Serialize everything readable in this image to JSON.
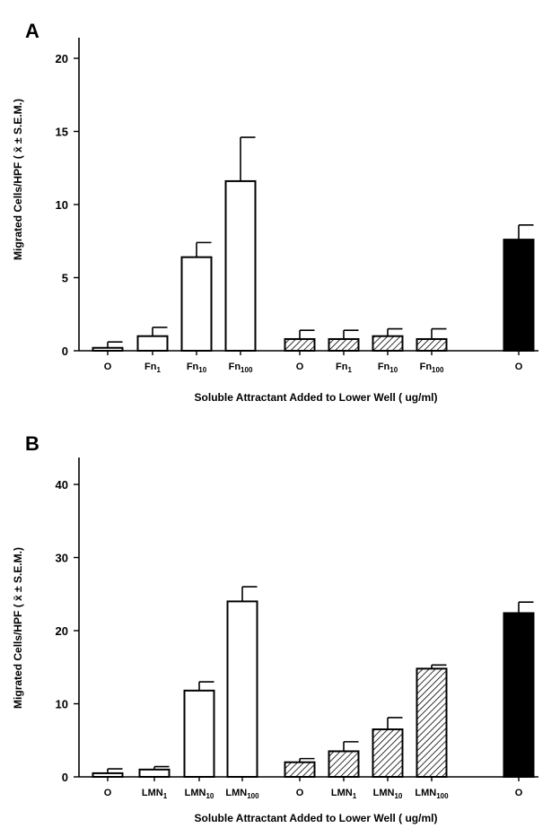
{
  "colors": {
    "open": "#ffffff",
    "hatched": "hatch",
    "filled": "#000000"
  },
  "chart_data": [
    {
      "type": "bar",
      "panel_label": "A",
      "ylabel": "Migrated Cells/HPF ( x̄ ± S.E.M.)",
      "xlabel": "Soluble Attractant Added to Lower Well ( ug/ml)",
      "ylim": [
        0,
        20
      ],
      "yticks": [
        0,
        5,
        10,
        15,
        20
      ],
      "categories": [
        {
          "base": "O",
          "sub": ""
        },
        {
          "base": "Fn",
          "sub": "1"
        },
        {
          "base": "Fn",
          "sub": "10"
        },
        {
          "base": "Fn",
          "sub": "100"
        },
        {
          "base": "O",
          "sub": ""
        },
        {
          "base": "Fn",
          "sub": "1"
        },
        {
          "base": "Fn",
          "sub": "10"
        },
        {
          "base": "Fn",
          "sub": "100"
        },
        {
          "base": "O",
          "sub": ""
        }
      ],
      "styles": [
        "open",
        "open",
        "open",
        "open",
        "hatched",
        "hatched",
        "hatched",
        "hatched",
        "filled"
      ],
      "values": [
        0.2,
        1.0,
        6.4,
        11.6,
        0.8,
        0.8,
        1.0,
        0.8,
        7.6
      ],
      "errors": [
        0.4,
        0.6,
        1.0,
        3.0,
        0.6,
        0.6,
        0.5,
        0.7,
        1.0
      ],
      "grid": false
    },
    {
      "type": "bar",
      "panel_label": "B",
      "ylabel": "Migrated Cells/HPF ( x̄ ± S.E.M.)",
      "xlabel": "Soluble Attractant Added to Lower Well ( ug/ml)",
      "ylim": [
        0,
        40
      ],
      "yticks": [
        0,
        10,
        20,
        30,
        40
      ],
      "categories": [
        {
          "base": "O",
          "sub": ""
        },
        {
          "base": "LMN",
          "sub": "1"
        },
        {
          "base": "LMN",
          "sub": "10"
        },
        {
          "base": "LMN",
          "sub": "100"
        },
        {
          "base": "O",
          "sub": ""
        },
        {
          "base": "LMN",
          "sub": "1"
        },
        {
          "base": "LMN",
          "sub": "10"
        },
        {
          "base": "LMN",
          "sub": "100"
        },
        {
          "base": "O",
          "sub": ""
        }
      ],
      "styles": [
        "open",
        "open",
        "open",
        "open",
        "hatched",
        "hatched",
        "hatched",
        "hatched",
        "filled"
      ],
      "values": [
        0.5,
        1.0,
        11.8,
        24.0,
        2.0,
        3.5,
        6.5,
        14.8,
        22.4
      ],
      "errors": [
        0.6,
        0.4,
        1.2,
        2.0,
        0.5,
        1.3,
        1.6,
        0.5,
        1.5
      ],
      "grid": false
    }
  ]
}
